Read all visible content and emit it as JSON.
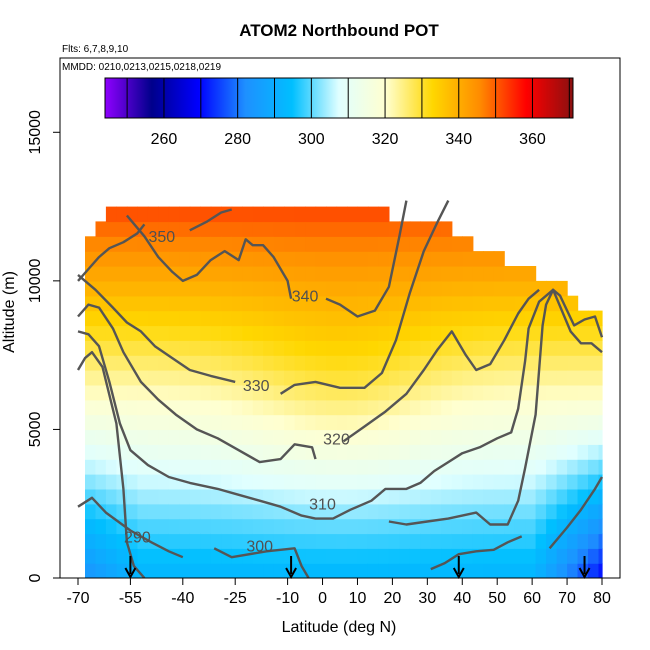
{
  "chart_data": {
    "type": "heatmap",
    "title": "ATOM2 Northbound POT",
    "notes": [
      "Flts: 6,7,8,9,10",
      "MMDD: 0210,0213,0215,0218,0219"
    ],
    "xlabel": "Latitude (deg N)",
    "ylabel": "Altitude (m)",
    "xlim": [
      -70,
      80
    ],
    "ylim": [
      0,
      17500
    ],
    "x_ticks": [
      -70,
      -55,
      -40,
      -25,
      -10,
      0,
      10,
      20,
      30,
      40,
      50,
      60,
      70,
      80
    ],
    "y_ticks": [
      0,
      5000,
      10000,
      15000
    ],
    "colorbar": {
      "range": [
        244,
        371
      ],
      "ticks": [
        260,
        280,
        300,
        320,
        340,
        360
      ],
      "colors": [
        "#8f00ff",
        "#00008b",
        "#0000ff",
        "#1e90ff",
        "#00bfff",
        "#e0ffff",
        "#ffffd0",
        "#ffd700",
        "#ff8c00",
        "#ff0000",
        "#8b1010"
      ]
    },
    "profile_markers_lat": [
      -55,
      -9,
      39,
      75
    ],
    "contours": [
      {
        "level": 290,
        "label": "290",
        "label_at": [
          -53,
          1200
        ],
        "segments": [
          [
            [
              -70,
              7000
            ],
            [
              -68,
              7400
            ],
            [
              -66,
              7600
            ],
            [
              -63,
              7100
            ],
            [
              -59,
              5200
            ],
            [
              -57,
              3000
            ],
            [
              -56,
              1200
            ],
            [
              -54,
              400
            ],
            [
              -51,
              0
            ]
          ],
          [
            [
              -70,
              2400
            ],
            [
              -66,
              2700
            ],
            [
              -62,
              2200
            ],
            [
              -55,
              1600
            ],
            [
              -49,
              1200
            ],
            [
              -44,
              900
            ],
            [
              -40,
              700
            ]
          ],
          [
            [
              31,
              300
            ],
            [
              35,
              500
            ],
            [
              39,
              800
            ],
            [
              44,
              900
            ],
            [
              49,
              950
            ],
            [
              53,
              1200
            ],
            [
              57,
              1400
            ]
          ]
        ]
      },
      {
        "level": 300,
        "label": "300",
        "label_at": [
          -18,
          900
        ],
        "segments": [
          [
            [
              -31,
              1000
            ],
            [
              -26,
              700
            ],
            [
              -16,
              900
            ],
            [
              -8,
              1000
            ],
            [
              -6,
              400
            ],
            [
              -4,
              0
            ]
          ],
          [
            [
              19,
              1900
            ],
            [
              24,
              1800
            ],
            [
              30,
              1900
            ],
            [
              36,
              2000
            ],
            [
              40,
              2100
            ],
            [
              44,
              2200
            ],
            [
              48,
              1800
            ],
            [
              53,
              1800
            ],
            [
              56,
              2600
            ],
            [
              58,
              3700
            ],
            [
              61,
              5500
            ],
            [
              62,
              7000
            ],
            [
              63,
              8500
            ],
            [
              64,
              9200
            ],
            [
              66,
              9700
            ],
            [
              68,
              9500
            ],
            [
              70,
              9000
            ],
            [
              72,
              8500
            ],
            [
              75,
              8700
            ],
            [
              78,
              8800
            ],
            [
              80,
              8100
            ]
          ]
        ]
      },
      {
        "level": 310,
        "label": "310",
        "label_at": [
          0,
          2300
        ],
        "segments": [
          [
            [
              -70,
              8300
            ],
            [
              -67,
              8200
            ],
            [
              -64,
              7800
            ],
            [
              -61,
              6600
            ],
            [
              -58,
              5200
            ],
            [
              -55,
              4300
            ],
            [
              -50,
              3800
            ],
            [
              -44,
              3400
            ],
            [
              -38,
              3200
            ],
            [
              -30,
              3000
            ],
            [
              -24,
              2800
            ],
            [
              -18,
              2600
            ],
            [
              -12,
              2400
            ],
            [
              -6,
              2100
            ],
            [
              -2,
              2000
            ],
            [
              3,
              2000
            ],
            [
              8,
              2300
            ],
            [
              14,
              2600
            ],
            [
              18,
              3000
            ],
            [
              24,
              3000
            ],
            [
              28,
              3200
            ],
            [
              32,
              3600
            ],
            [
              36,
              3900
            ],
            [
              40,
              4200
            ],
            [
              45,
              4400
            ],
            [
              50,
              4700
            ],
            [
              54,
              4900
            ],
            [
              56,
              5700
            ],
            [
              58,
              7300
            ],
            [
              59,
              8400
            ],
            [
              62,
              9300
            ],
            [
              66,
              9700
            ],
            [
              71,
              8300
            ],
            [
              74,
              7900
            ],
            [
              77,
              7900
            ],
            [
              80,
              7600
            ]
          ],
          [
            [
              65,
              1000
            ],
            [
              70,
              1700
            ],
            [
              74,
              2300
            ],
            [
              78,
              3000
            ],
            [
              80,
              3400
            ]
          ]
        ]
      },
      {
        "level": 320,
        "label": "320",
        "label_at": [
          4,
          4500
        ],
        "segments": [
          [
            [
              -70,
              8800
            ],
            [
              -67,
              9200
            ],
            [
              -64,
              9100
            ],
            [
              -60,
              8400
            ],
            [
              -57,
              7600
            ],
            [
              -52,
              6600
            ],
            [
              -47,
              6000
            ],
            [
              -42,
              5500
            ],
            [
              -36,
              5000
            ],
            [
              -30,
              4700
            ],
            [
              -24,
              4300
            ],
            [
              -18,
              3900
            ],
            [
              -12,
              4000
            ],
            [
              -8,
              4500
            ],
            [
              -3,
              4400
            ],
            [
              -2,
              4000
            ]
          ],
          [
            [
              6,
              4600
            ],
            [
              12,
              5100
            ],
            [
              18,
              5600
            ],
            [
              24,
              6200
            ],
            [
              29,
              7000
            ],
            [
              33,
              7700
            ],
            [
              37,
              8300
            ],
            [
              41,
              7500
            ],
            [
              44,
              7000
            ],
            [
              48,
              7200
            ],
            [
              52,
              8000
            ],
            [
              56,
              8900
            ],
            [
              59,
              9400
            ],
            [
              62,
              9700
            ]
          ]
        ]
      },
      {
        "level": 330,
        "label": "330",
        "label_at": [
          -19,
          6300
        ],
        "segments": [
          [
            [
              -70,
              10200
            ],
            [
              -65,
              9700
            ],
            [
              -60,
              9100
            ],
            [
              -56,
              8600
            ],
            [
              -52,
              8300
            ],
            [
              -48,
              7800
            ],
            [
              -43,
              7400
            ],
            [
              -38,
              7000
            ],
            [
              -32,
              6800
            ],
            [
              -25,
              6600
            ]
          ],
          [
            [
              -12,
              6200
            ],
            [
              -8,
              6500
            ],
            [
              -2,
              6600
            ],
            [
              5,
              6400
            ],
            [
              12,
              6400
            ],
            [
              17,
              6900
            ],
            [
              21,
              8000
            ],
            [
              25,
              9600
            ],
            [
              29,
              11000
            ],
            [
              33,
              12000
            ],
            [
              36,
              12700
            ]
          ]
        ]
      },
      {
        "level": 340,
        "label": "340",
        "label_at": [
          -5,
          9300
        ],
        "segments": [
          [
            [
              -56,
              12200
            ],
            [
              -51,
              11500
            ],
            [
              -47,
              10800
            ],
            [
              -43,
              10300
            ],
            [
              -40,
              10000
            ],
            [
              -36,
              10200
            ],
            [
              -32,
              10700
            ],
            [
              -28,
              11000
            ],
            [
              -24,
              10700
            ],
            [
              -22,
              11400
            ],
            [
              -20,
              11200
            ],
            [
              -17,
              11200
            ],
            [
              -14,
              10800
            ],
            [
              -10,
              10000
            ],
            [
              -9,
              9400
            ]
          ],
          [
            [
              1,
              9400
            ],
            [
              5,
              9200
            ],
            [
              10,
              8800
            ],
            [
              15,
              9000
            ],
            [
              19,
              9800
            ],
            [
              22,
              11500
            ],
            [
              24,
              12700
            ]
          ]
        ]
      },
      {
        "level": 350,
        "label": "350",
        "label_at": [
          -46,
          11300
        ],
        "segments": [
          [
            [
              -70,
              10000
            ],
            [
              -67,
              10400
            ],
            [
              -64,
              10800
            ],
            [
              -61,
              11100
            ],
            [
              -57,
              11300
            ],
            [
              -53,
              11600
            ],
            [
              -51,
              11900
            ]
          ],
          [
            [
              -38,
              11700
            ],
            [
              -33,
              12000
            ],
            [
              -29,
              12300
            ],
            [
              -26,
              12400
            ]
          ]
        ]
      }
    ],
    "heatmap_model": {
      "grid_lat_step": 3,
      "grid_alt_step": 500,
      "base": [
        {
          "alt": 0,
          "pot": 292
        },
        {
          "alt": 2000,
          "pot": 300
        },
        {
          "alt": 4000,
          "pot": 310
        },
        {
          "alt": 6000,
          "pot": 320
        },
        {
          "alt": 8000,
          "pot": 330
        },
        {
          "alt": 10000,
          "pot": 340
        },
        {
          "alt": 12500,
          "pot": 352
        }
      ],
      "coverage": [
        {
          "lat": -68,
          "alt": [
            0,
            10800
          ]
        },
        {
          "lat": -60,
          "alt": [
            0,
            12400
          ]
        },
        {
          "lat": -40,
          "alt": [
            0,
            12400
          ]
        },
        {
          "lat": -20,
          "alt": [
            0,
            12500
          ]
        },
        {
          "lat": 0,
          "alt": [
            0,
            12200
          ]
        },
        {
          "lat": 20,
          "alt": [
            0,
            12000
          ]
        },
        {
          "lat": 30,
          "alt": [
            0,
            11800
          ]
        },
        {
          "lat": 40,
          "alt": [
            0,
            11300
          ]
        },
        {
          "lat": 50,
          "alt": [
            0,
            10600
          ]
        },
        {
          "lat": 60,
          "alt": [
            0,
            10000
          ]
        },
        {
          "lat": 68,
          "alt": [
            0,
            9600
          ]
        },
        {
          "lat": 74,
          "alt": [
            0,
            8800
          ]
        },
        {
          "lat": 80,
          "alt": [
            0,
            8700
          ]
        }
      ]
    }
  }
}
